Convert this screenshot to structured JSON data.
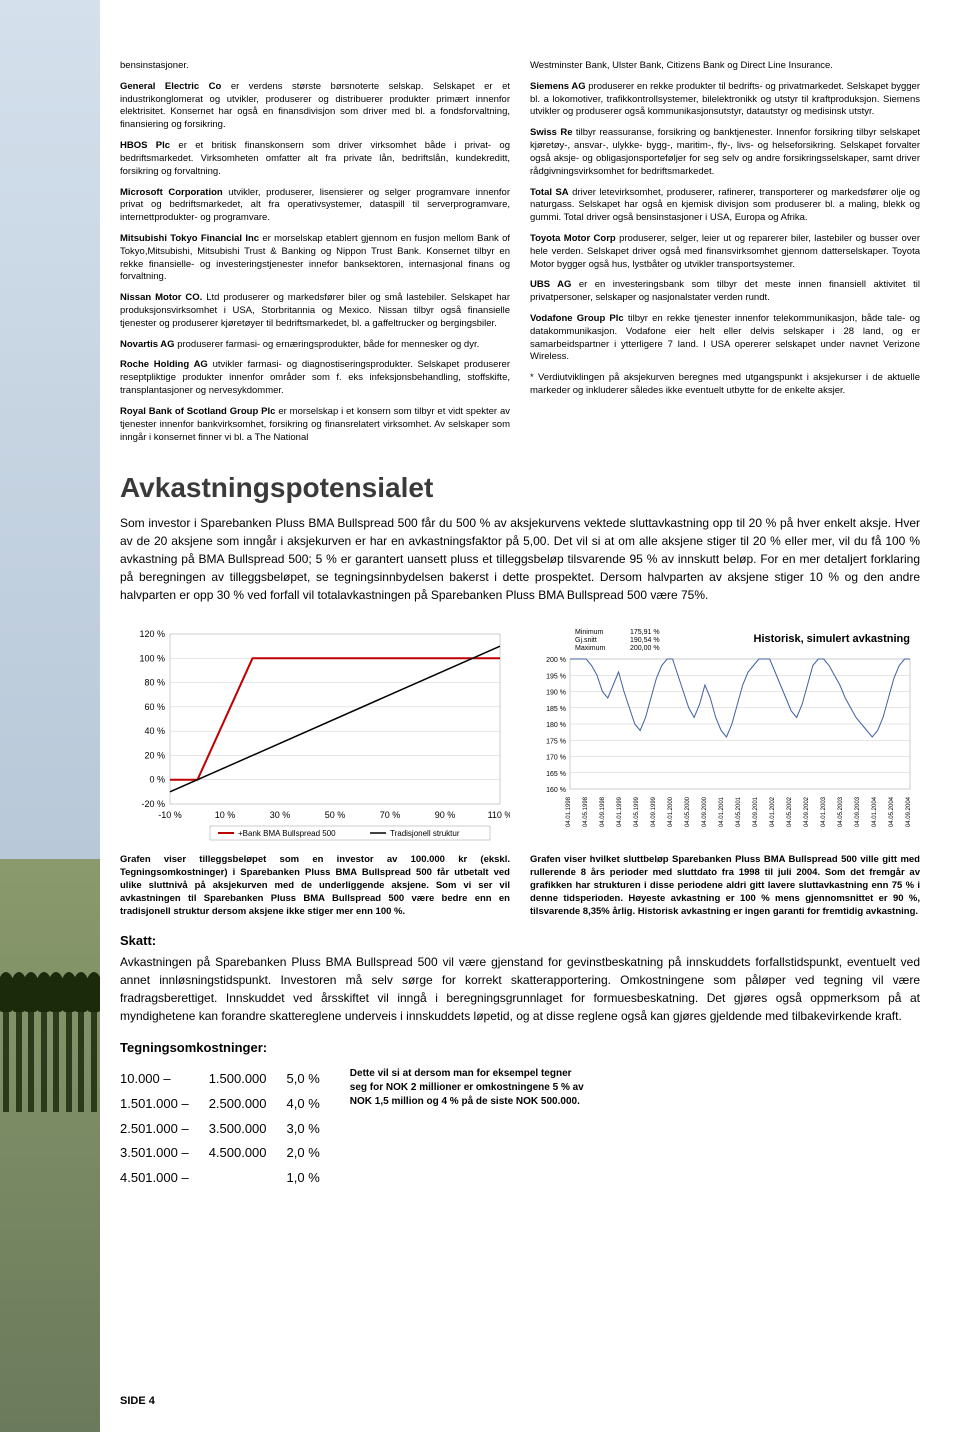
{
  "sidebar_image": "tree-row-landscape",
  "left_column": [
    {
      "lead": "",
      "text": "bensinstasjoner."
    },
    {
      "lead": "General Electric Co",
      "text": " er verdens største børsnoterte selskap. Selskapet er et industrikonglomerat og utvikler, produserer og distribuerer produkter primært innenfor elektrisitet. Konsernet har også en finansdivisjon som driver med bl. a fondsforvaltning, finansiering og forsikring."
    },
    {
      "lead": "HBOS Plc",
      "text": " er et britisk finanskonsern som driver virksomhet både i privat- og bedriftsmarkedet. Virksomheten omfatter alt fra private lån, bedriftslån, kundekreditt, forsikring og forvaltning."
    },
    {
      "lead": "Microsoft Corporation",
      "text": " utvikler, produserer, lisensierer og selger programvare innenfor privat og bedriftsmarkedet, alt fra operativsystemer, dataspill til serverprogramvare, internettprodukter- og programvare."
    },
    {
      "lead": "Mitsubishi Tokyo Financial Inc",
      "text": " er morselskap etablert gjennom en fusjon mellom Bank of Tokyo,Mitsubishi, Mitsubishi Trust & Banking og Nippon Trust Bank. Konsernet tilbyr en rekke finansielle- og investeringstjenester innefor banksektoren, internasjonal finans og forvaltning."
    },
    {
      "lead": "Nissan Motor CO.",
      "text": " Ltd produserer og markedsfører biler og små lastebiler. Selskapet har produksjonsvirksomhet i USA, Storbritannia og Mexico. Nissan tilbyr også finansielle tjenester og produserer kjøretøyer til bedriftsmarkedet, bl. a gaffeltrucker og bergingsbiler."
    },
    {
      "lead": "Novartis AG",
      "text": " produserer farmasi- og ernæringsprodukter, både for mennesker og dyr."
    },
    {
      "lead": "Roche Holding AG",
      "text": " utvikler farmasi- og diagnostiseringsprodukter. Selskapet produserer reseptpliktige produkter innenfor områder som f. eks infeksjonsbehandling, stoffskifte, transplantasjoner og nervesykdommer."
    },
    {
      "lead": "Royal Bank of Scotland Group Plc",
      "text": " er morselskap i et konsern som tilbyr et vidt spekter av tjenester innenfor bankvirksomhet, forsikring og finansrelatert virksomhet. Av selskaper som inngår i konsernet finner vi bl. a The National"
    }
  ],
  "right_column": [
    {
      "lead": "",
      "text": "Westminster Bank, Ulster Bank, Citizens Bank og Direct Line Insurance."
    },
    {
      "lead": "Siemens AG",
      "text": " produserer en rekke produkter til bedrifts- og privatmarkedet. Selskapet bygger bl. a lokomotiver, trafikkontrollsystemer, bilelektronikk og utstyr til kraftproduksjon. Siemens utvikler og produserer også kommunikasjonsutstyr, datautstyr og medisinsk utstyr."
    },
    {
      "lead": "Swiss Re",
      "text": " tilbyr reassuranse, forsikring og banktjenester. Innenfor forsikring tilbyr selskapet kjøretøy-, ansvar-, ulykke- bygg-, maritim-, fly-, livs- og helseforsikring. Selskapet forvalter også aksje- og obligasjonsporteføljer for seg selv og andre forsikringsselskaper, samt driver rådgivningsvirksomhet for bedriftsmarkedet."
    },
    {
      "lead": "Total SA",
      "text": " driver letevirksomhet, produserer, rafinerer, transporterer og markedsfører olje og naturgass. Selskapet har også en kjemisk divisjon som produserer bl. a maling, blekk og gummi. Total driver også bensinstasjoner i USA, Europa og Afrika."
    },
    {
      "lead": "Toyota Motor Corp",
      "text": " produserer, selger, leier ut og reparerer biler, lastebiler og busser over hele verden. Selskapet driver også med finansvirksomhet gjennom datterselskaper. Toyota Motor bygger også hus, lystbåter og utvikler transportsystemer."
    },
    {
      "lead": "UBS AG",
      "text": " er en investeringsbank som tilbyr det meste innen finansiell aktivitet til privatpersoner, selskaper og nasjonalstater verden rundt."
    },
    {
      "lead": "Vodafone Group Plc",
      "text": " tilbyr en rekke tjenester innenfor telekommunikasjon, både tale- og datakommunikasjon. Vodafone eier helt eller delvis selskaper i 28 land, og er samarbeidspartner i ytterligere 7 land. I USA opererer selskapet under navnet Verizone Wireless."
    },
    {
      "lead": "",
      "text": "* Verdiutviklingen på aksjekurven beregnes med utgangspunkt i aksjekurser i de aktuelle markeder og inkluderer således ikke eventuelt utbytte for de enkelte aksjer."
    }
  ],
  "avkastning": {
    "title": "Avkastningspotensialet",
    "intro": "Som investor i Sparebanken Pluss BMA Bullspread 500 får du 500 % av aksjekurvens vektede sluttavkastning opp til 20 % på hver enkelt aksje. Hver av de 20 aksjene som inngår i aksjekurven er har en avkastningsfaktor på 5,00. Det vil si at om alle aksjene stiger til 20 % eller mer, vil du få 100 % avkastning på BMA Bullspread 500; 5 % er garantert uansett pluss et tilleggsbeløp tilsvarende 95 % av innskutt beløp. For en mer detaljert forklaring på beregningen av tilleggsbeløpet, se tegningsinnbydelsen bakerst i dette prospektet. Dersom halvparten av aksjene stiger 10 % og den andre halvparten er opp 30 % ved forfall vil totalavkastningen på Sparebanken Pluss BMA Bullspread 500 være 75%."
  },
  "chart1": {
    "type": "line",
    "y_ticks": [
      "120 %",
      "100 %",
      "80 %",
      "60 %",
      "40 %",
      "20 %",
      "0 %",
      "-20 %"
    ],
    "x_ticks": [
      "-10 %",
      "10 %",
      "30 %",
      "50 %",
      "70 %",
      "90 %",
      "110 %"
    ],
    "legend": [
      "+Bank BMA Bullspread 500",
      "Tradisjonell struktur"
    ],
    "colors": {
      "series1": "#c00000",
      "series2": "#000000",
      "grid": "#cccccc",
      "bg": "#ffffff"
    },
    "caption_bold1": "Grafen viser tilleggsbeløpet som en investor av 100.000 kr (ekskl. Tegningsomkostninger) i Sparebanken Pluss BMA Bullspread 500 får utbetalt ved ulike sluttnivå på aksjekurven med de underliggende aksjene. Som vi ser vil avkastningen til Sparebanken Pluss BMA Bullspread 500 være bedre enn en tradisjonell struktur dersom aksjene ikke stiger mer enn 100 %."
  },
  "chart2": {
    "type": "line",
    "stats": {
      "min_label": "Minimum",
      "min": "175,91 %",
      "avg_label": "Gj.snitt",
      "avg": "190,54 %",
      "max_label": "Maximum",
      "max": "200,00 %"
    },
    "title": "Historisk, simulert avkastning",
    "y_ticks": [
      "200 %",
      "195 %",
      "190 %",
      "185 %",
      "180 %",
      "175 %",
      "170 %",
      "165 %",
      "160 %"
    ],
    "x_ticks": [
      "04.01.1998",
      "04.05.1998",
      "04.09.1998",
      "04.01.1999",
      "04.05.1999",
      "04.09.1999",
      "04.01.2000",
      "04.05.2000",
      "04.09.2000",
      "04.01.2001",
      "04.05.2001",
      "04.09.2001",
      "04.01.2002",
      "04.05.2002",
      "04.09.2002",
      "04.01.2003",
      "04.05.2003",
      "04.09.2003",
      "04.01.2004",
      "04.05.2004",
      "04.09.2004"
    ],
    "colors": {
      "line": "#4060a0",
      "grid": "#cccccc",
      "bg": "#ffffff"
    },
    "caption": "Grafen viser hvilket sluttbeløp Sparebanken Pluss BMA Bullspread 500 ville gitt med rullerende 8 års perioder med sluttdato fra 1998 til juli 2004. Som det fremgår av grafikken har strukturen i disse periodene aldri gitt lavere sluttavkastning enn 75 % i denne tidsperioden. Høyeste avkastning er 100 % mens gjennomsnittet er 90 %, tilsvarende 8,35% årlig. Historisk avkastning er ingen garanti for fremtidig avkastning."
  },
  "skatt": {
    "title": "Skatt:",
    "text": "Avkastningen på Sparebanken Pluss BMA Bullspread 500 vil være gjenstand for gevinstbeskatning på innskuddets forfallstidspunkt, eventuelt ved annet innløsningstidspunkt. Investoren må selv sørge for korrekt skatterapportering. Omkostningene som påløper ved tegning vil være fradragsberettiget. Innskuddet ved årsskiftet vil inngå i beregningsgrunnlaget for formuesbeskatning. Det gjøres også oppmerksom på at myndighetene kan forandre skattereglene underveis i innskuddets løpetid, og at disse reglene også kan gjøres gjeldende med tilbakevirkende kraft."
  },
  "tegning": {
    "title": "Tegningsomkostninger:",
    "rows": [
      {
        "from": "10.000 –",
        "to": "1.500.000",
        "pct": "5,0 %"
      },
      {
        "from": "1.501.000 –",
        "to": "2.500.000",
        "pct": "4,0 %"
      },
      {
        "from": "2.501.000 –",
        "to": "3.500.000",
        "pct": "3,0 %"
      },
      {
        "from": "3.501.000 –",
        "to": "4.500.000",
        "pct": "2,0 %"
      },
      {
        "from": "4.501.000 –",
        "to": "",
        "pct": "1,0 %"
      }
    ],
    "note": "Dette vil si at dersom man for eksempel tegner seg for NOK 2 millioner er omkostningene 5 % av NOK 1,5 million og 4 % på de siste NOK 500.000."
  },
  "page_number": "SIDE 4"
}
